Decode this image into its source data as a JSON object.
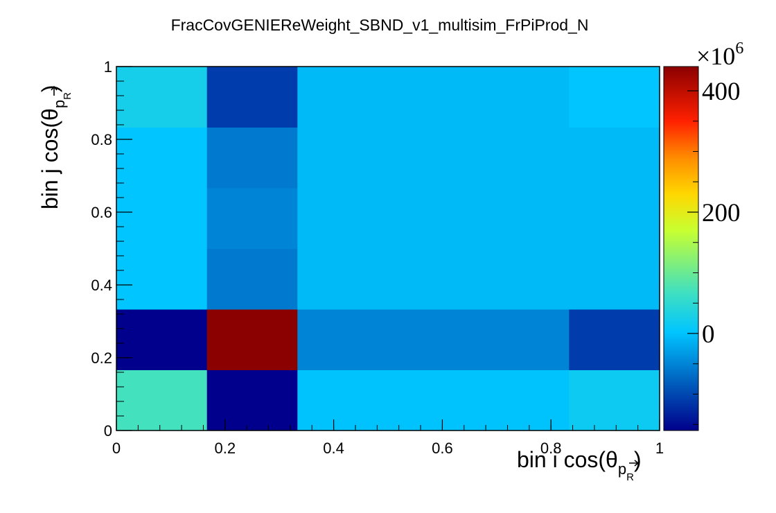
{
  "chart_data": {
    "type": "heatmap",
    "title": "FracCovGENIEReWeight_SBND_v1_multisim_FrPiProd_N",
    "xlabel": {
      "text": "bin i cos(θ",
      "sub": "p",
      "subsub": "R",
      "close": ")"
    },
    "ylabel": {
      "text": "bin j cos(θ",
      "sub": "p",
      "subsub": "R",
      "close": ")"
    },
    "x_edges": [
      0,
      0.1667,
      0.3333,
      0.5,
      0.6667,
      0.8333,
      1
    ],
    "y_edges": [
      0,
      0.1667,
      0.3333,
      0.5,
      0.6667,
      0.8333,
      1
    ],
    "xlim": [
      0,
      1
    ],
    "ylim": [
      0,
      1
    ],
    "x_ticks": [
      {
        "v": 0,
        "label": "0"
      },
      {
        "v": 0.2,
        "label": "0.2"
      },
      {
        "v": 0.4,
        "label": "0.4"
      },
      {
        "v": 0.6,
        "label": "0.6"
      },
      {
        "v": 0.8,
        "label": "0.8"
      },
      {
        "v": 1,
        "label": "1"
      }
    ],
    "y_ticks": [
      {
        "v": 0,
        "label": "0"
      },
      {
        "v": 0.2,
        "label": "0.2"
      },
      {
        "v": 0.4,
        "label": "0.4"
      },
      {
        "v": 0.6,
        "label": "0.6"
      },
      {
        "v": 0.8,
        "label": "0.8"
      },
      {
        "v": 1,
        "label": "1"
      }
    ],
    "values_bottom_to_top": [
      [
        70,
        -160,
        0,
        0,
        0,
        15
      ],
      [
        -160,
        440,
        -50,
        -50,
        -50,
        -110
      ],
      [
        2,
        -60,
        -8,
        -8,
        -8,
        -8
      ],
      [
        2,
        -50,
        -8,
        -8,
        -8,
        -8
      ],
      [
        2,
        -60,
        -8,
        -8,
        -8,
        -8
      ],
      [
        25,
        -110,
        -8,
        -8,
        -8,
        2
      ]
    ],
    "zlim": [
      -160,
      440
    ],
    "z_ticks": [
      {
        "v": 0,
        "label": "0"
      },
      {
        "v": 200,
        "label": "200"
      },
      {
        "v": 400,
        "label": "400"
      }
    ],
    "z_multiplier": {
      "base": "×10",
      "exponent": "6"
    },
    "colormap": [
      "#00008c",
      "#0056b8",
      "#00c5ff",
      "#40e0c0",
      "#c8ff30",
      "#ffd700",
      "#ff8c00",
      "#ff2000",
      "#8b0000"
    ],
    "colormap_stops": [
      0,
      0.12,
      0.27,
      0.38,
      0.55,
      0.65,
      0.75,
      0.85,
      1
    ]
  }
}
